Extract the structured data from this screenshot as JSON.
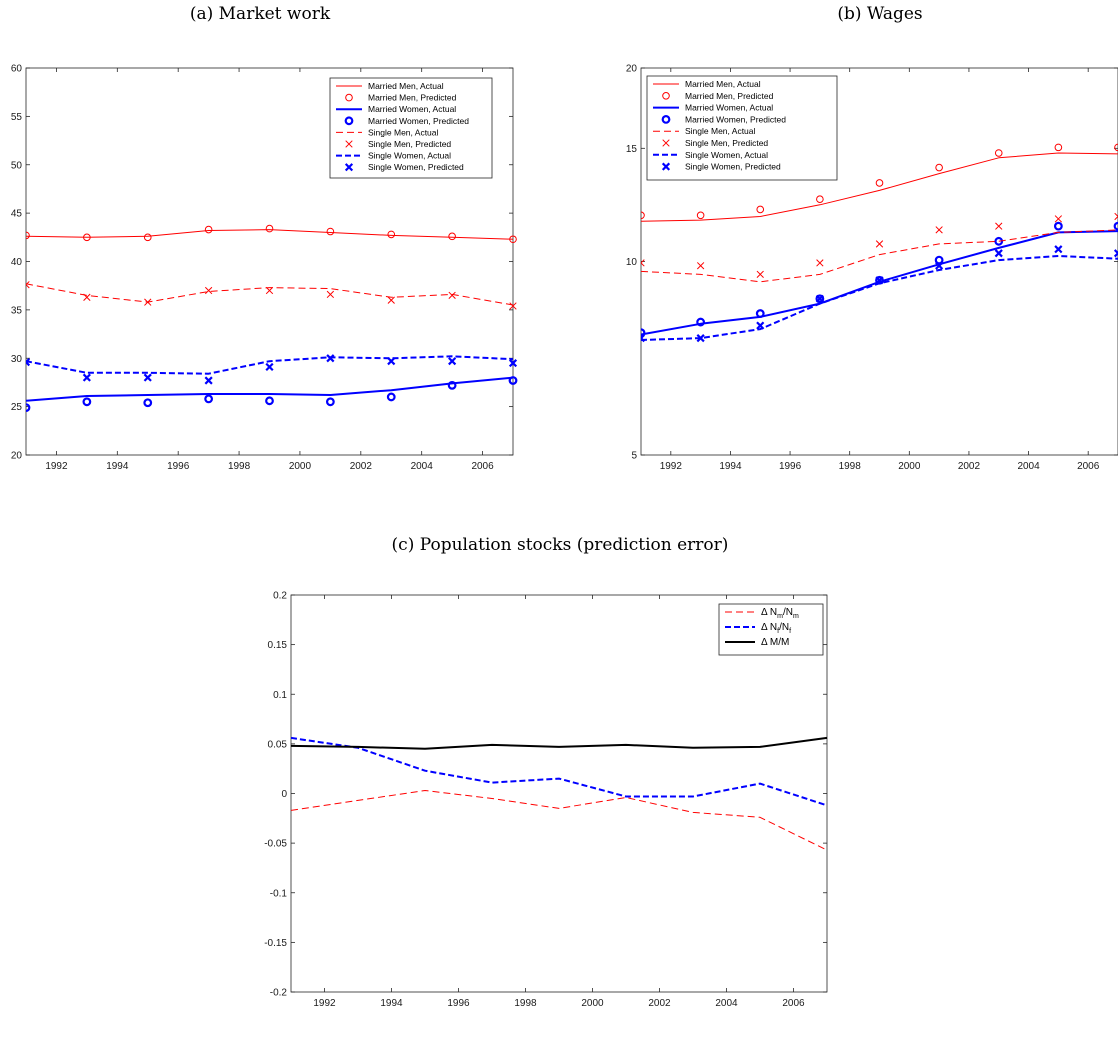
{
  "captions": {
    "a": "(a) Market work",
    "b": "(b) Wages",
    "c": "(c) Population stocks (prediction error)"
  },
  "chart_data": [
    {
      "id": "a",
      "type": "line",
      "title": "(a) Market work",
      "xlim": [
        1991,
        2007
      ],
      "ylim": [
        20,
        60
      ],
      "yscale": "linear",
      "xticks": [
        1992,
        1994,
        1996,
        1998,
        2000,
        2002,
        2004,
        2006
      ],
      "yticks": [
        20,
        25,
        30,
        35,
        40,
        45,
        50,
        55,
        60
      ],
      "legend_position": "top-right",
      "grid": false,
      "series": [
        {
          "name": "Married Men, Actual",
          "kind": "line",
          "color": "#ff0000",
          "dash": "solid",
          "width": 1,
          "x": [
            1991,
            1993,
            1995,
            1997,
            1999,
            2001,
            2003,
            2005,
            2007
          ],
          "y": [
            42.6,
            42.5,
            42.6,
            43.2,
            43.3,
            43.0,
            42.7,
            42.5,
            42.3
          ]
        },
        {
          "name": "Married Men, Predicted",
          "kind": "marker",
          "marker": "o",
          "color": "#ff0000",
          "x": [
            1991,
            1993,
            1995,
            1997,
            1999,
            2001,
            2003,
            2005,
            2007
          ],
          "y": [
            42.7,
            42.5,
            42.5,
            43.3,
            43.4,
            43.1,
            42.8,
            42.6,
            42.3
          ]
        },
        {
          "name": "Married Women, Actual",
          "kind": "line",
          "color": "#0000ff",
          "dash": "solid",
          "width": 2,
          "x": [
            1991,
            1993,
            1995,
            1997,
            1999,
            2001,
            2003,
            2005,
            2007
          ],
          "y": [
            25.6,
            26.1,
            26.2,
            26.3,
            26.3,
            26.2,
            26.7,
            27.4,
            28.0
          ]
        },
        {
          "name": "Married Women, Predicted",
          "kind": "marker",
          "marker": "o-bold",
          "color": "#0000ff",
          "x": [
            1991,
            1993,
            1995,
            1997,
            1999,
            2001,
            2003,
            2005,
            2007
          ],
          "y": [
            24.9,
            25.5,
            25.4,
            25.8,
            25.6,
            25.5,
            26.0,
            27.2,
            27.7
          ]
        },
        {
          "name": "Single Men, Actual",
          "kind": "line",
          "color": "#ff0000",
          "dash": "dashed",
          "width": 1,
          "x": [
            1991,
            1993,
            1995,
            1997,
            1999,
            2001,
            2003,
            2005,
            2007
          ],
          "y": [
            37.7,
            36.5,
            35.8,
            36.9,
            37.3,
            37.2,
            36.3,
            36.6,
            35.5
          ]
        },
        {
          "name": "Single Men, Predicted",
          "kind": "marker",
          "marker": "x",
          "color": "#ff0000",
          "x": [
            1991,
            1993,
            1995,
            1997,
            1999,
            2001,
            2003,
            2005,
            2007
          ],
          "y": [
            37.6,
            36.3,
            35.8,
            37.0,
            37.0,
            36.6,
            36.0,
            36.5,
            35.4
          ]
        },
        {
          "name": "Single Women, Actual",
          "kind": "line",
          "color": "#0000ff",
          "dash": "dashed",
          "width": 2,
          "x": [
            1991,
            1993,
            1995,
            1997,
            1999,
            2001,
            2003,
            2005,
            2007
          ],
          "y": [
            29.7,
            28.5,
            28.5,
            28.4,
            29.7,
            30.1,
            30.0,
            30.2,
            29.9
          ]
        },
        {
          "name": "Single Women, Predicted",
          "kind": "marker",
          "marker": "x-bold",
          "color": "#0000ff",
          "x": [
            1991,
            1993,
            1995,
            1997,
            1999,
            2001,
            2003,
            2005,
            2007
          ],
          "y": [
            29.6,
            28.0,
            28.0,
            27.7,
            29.1,
            30.0,
            29.7,
            29.7,
            29.5
          ]
        }
      ]
    },
    {
      "id": "b",
      "type": "line",
      "title": "(b) Wages",
      "xlim": [
        1991,
        2007
      ],
      "ylim": [
        5,
        20
      ],
      "yscale": "log",
      "xticks": [
        1992,
        1994,
        1996,
        1998,
        2000,
        2002,
        2004,
        2006
      ],
      "yticks": [
        5,
        10,
        15,
        20
      ],
      "legend_position": "top-left",
      "grid": false,
      "series": [
        {
          "name": "Married Men, Actual",
          "kind": "line",
          "color": "#ff0000",
          "dash": "solid",
          "width": 1,
          "x": [
            1991,
            1993,
            1995,
            1997,
            1999,
            2001,
            2003,
            2005,
            2007
          ],
          "y": [
            11.55,
            11.6,
            11.75,
            12.25,
            12.9,
            13.7,
            14.5,
            14.75,
            14.7
          ]
        },
        {
          "name": "Married Men, Predicted",
          "kind": "marker",
          "marker": "o",
          "color": "#ff0000",
          "x": [
            1991,
            1993,
            1995,
            1997,
            1999,
            2001,
            2003,
            2005,
            2007
          ],
          "y": [
            11.8,
            11.8,
            12.05,
            12.5,
            13.25,
            14.0,
            14.75,
            15.05,
            15.05
          ]
        },
        {
          "name": "Married Women, Actual",
          "kind": "line",
          "color": "#0000ff",
          "dash": "solid",
          "width": 2,
          "x": [
            1991,
            1993,
            1995,
            1997,
            1999,
            2001,
            2003,
            2005,
            2007
          ],
          "y": [
            7.7,
            8.0,
            8.2,
            8.6,
            9.3,
            9.9,
            10.5,
            11.1,
            11.15
          ]
        },
        {
          "name": "Married Women, Predicted",
          "kind": "marker",
          "marker": "o-bold",
          "color": "#0000ff",
          "x": [
            1991,
            1993,
            1995,
            1997,
            1999,
            2001,
            2003,
            2005,
            2007
          ],
          "y": [
            7.75,
            8.05,
            8.3,
            8.75,
            9.35,
            10.05,
            10.75,
            11.35,
            11.35
          ]
        },
        {
          "name": "Single Men, Actual",
          "kind": "line",
          "color": "#ff0000",
          "dash": "dashed",
          "width": 1,
          "x": [
            1991,
            1993,
            1995,
            1997,
            1999,
            2001,
            2003,
            2005,
            2007
          ],
          "y": [
            9.65,
            9.55,
            9.3,
            9.55,
            10.25,
            10.65,
            10.75,
            11.1,
            11.2
          ]
        },
        {
          "name": "Single Men, Predicted",
          "kind": "marker",
          "marker": "x",
          "color": "#ff0000",
          "x": [
            1991,
            1993,
            1995,
            1997,
            1999,
            2001,
            2003,
            2005,
            2007
          ],
          "y": [
            9.95,
            9.85,
            9.55,
            9.95,
            10.65,
            11.2,
            11.35,
            11.65,
            11.75
          ]
        },
        {
          "name": "Single Women, Actual",
          "kind": "line",
          "color": "#0000ff",
          "dash": "dashed",
          "width": 2,
          "x": [
            1991,
            1993,
            1995,
            1997,
            1999,
            2001,
            2003,
            2005,
            2007
          ],
          "y": [
            7.55,
            7.6,
            7.85,
            8.6,
            9.25,
            9.7,
            10.05,
            10.2,
            10.1
          ]
        },
        {
          "name": "Single Women, Predicted",
          "kind": "marker",
          "marker": "x-bold",
          "color": "#0000ff",
          "x": [
            1991,
            1993,
            1995,
            1997,
            1999,
            2001,
            2003,
            2005,
            2007
          ],
          "y": [
            7.6,
            7.6,
            7.95,
            8.75,
            9.35,
            9.85,
            10.3,
            10.45,
            10.3
          ]
        }
      ]
    },
    {
      "id": "c",
      "type": "line",
      "title": "(c) Population stocks (prediction error)",
      "xlim": [
        1991,
        2007
      ],
      "ylim": [
        -0.2,
        0.2
      ],
      "yscale": "linear",
      "xticks": [
        1992,
        1994,
        1996,
        1998,
        2000,
        2002,
        2004,
        2006
      ],
      "yticks": [
        -0.2,
        -0.15,
        -0.1,
        -0.05,
        0,
        0.05,
        0.1,
        0.15,
        0.2
      ],
      "ytick_labels": [
        "-0.2",
        "-0.15",
        "-0.1",
        "-0.05",
        "0",
        "0.05",
        "0.1",
        "0.15",
        "0.2"
      ],
      "legend_position": "top-right",
      "grid": false,
      "series": [
        {
          "name": "Δ N_m/N_m",
          "legend_main": "Δ N",
          "legend_sub": "m",
          "legend_mid": "/N",
          "legend_sub2": "m",
          "kind": "line",
          "color": "#ff0000",
          "dash": "dashed",
          "width": 1,
          "x": [
            1991,
            1993,
            1995,
            1997,
            1999,
            2001,
            2003,
            2005,
            2007
          ],
          "y": [
            -0.017,
            -0.007,
            0.003,
            -0.005,
            -0.015,
            -0.004,
            -0.019,
            -0.024,
            -0.057
          ]
        },
        {
          "name": "Δ N_f/N_f",
          "legend_main": "Δ N",
          "legend_sub": "f",
          "legend_mid": "/N",
          "legend_sub2": "f",
          "kind": "line",
          "color": "#0000ff",
          "dash": "dashed",
          "width": 2,
          "x": [
            1991,
            1993,
            1995,
            1997,
            1999,
            2001,
            2003,
            2005,
            2007
          ],
          "y": [
            0.056,
            0.046,
            0.023,
            0.011,
            0.015,
            -0.003,
            -0.003,
            0.01,
            -0.012
          ]
        },
        {
          "name": "Δ M/M",
          "legend_main": "Δ M/M",
          "kind": "line",
          "color": "#000000",
          "dash": "solid",
          "width": 2,
          "x": [
            1991,
            1993,
            1995,
            1997,
            1999,
            2001,
            2003,
            2005,
            2007
          ],
          "y": [
            0.048,
            0.047,
            0.045,
            0.049,
            0.047,
            0.049,
            0.046,
            0.047,
            0.056
          ]
        }
      ]
    }
  ]
}
